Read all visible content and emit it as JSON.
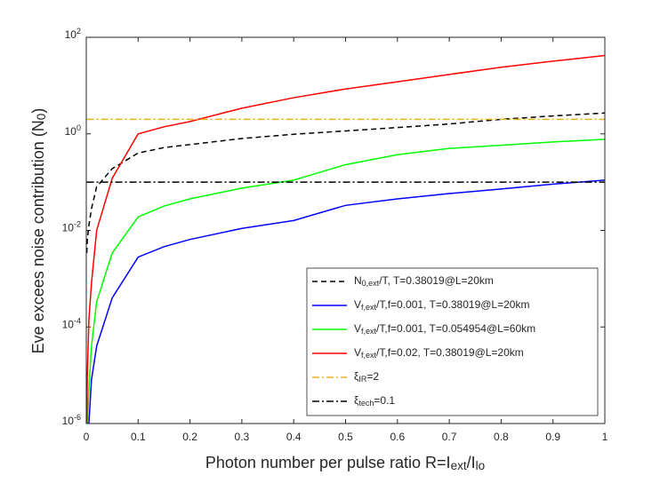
{
  "chart_data": {
    "type": "line",
    "xlabel": "Photon number per pulse ratio R=I_{ext}/I_{lo}",
    "ylabel": "Eve excees noise contribution  (N_0)",
    "x": [
      0.001,
      0.002,
      0.005,
      0.01,
      0.02,
      0.05,
      0.1,
      0.15,
      0.2,
      0.3,
      0.4,
      0.5,
      0.6,
      0.7,
      0.8,
      0.9,
      1
    ],
    "series": [
      {
        "name": "N_{0,ext}/T, T=0.38019@L=20km",
        "color": "#000000",
        "linestyle": "--",
        "values": [
          0.0034,
          0.0063,
          0.0126,
          0.028,
          0.08,
          0.19,
          0.4,
          0.52,
          0.6,
          0.8,
          0.98,
          1.15,
          1.35,
          1.6,
          2.0,
          2.35,
          2.7
        ]
      },
      {
        "name": "V_{f,ext}/T,f=0.001, T=0.38019@L=20km",
        "color": "#0000ff",
        "linestyle": "-",
        "values": [
          null,
          null,
          1e-06,
          8e-06,
          4e-05,
          0.0004,
          0.0028,
          0.0046,
          0.0065,
          0.011,
          0.016,
          0.033,
          0.045,
          0.058,
          0.072,
          0.091,
          0.11
        ]
      },
      {
        "name": "V_{f,ext}/T,f=0.001, T=0.054954@L=60km",
        "color": "#00ff00",
        "linestyle": "-",
        "values": [
          null,
          1e-06,
          5e-06,
          4e-05,
          0.00033,
          0.0034,
          0.019,
          0.032,
          0.045,
          0.075,
          0.11,
          0.23,
          0.37,
          0.5,
          0.58,
          0.68,
          0.77
        ]
      },
      {
        "name": "V_{f,ext}/T,f=0.02, T=0.38019@L=20km",
        "color": "#ff0000",
        "linestyle": "-",
        "values": [
          1e-06,
          1e-05,
          0.00014,
          0.0008,
          0.01,
          0.12,
          1,
          1.4,
          1.8,
          3.4,
          5.6,
          8.5,
          12,
          17,
          24,
          32,
          42
        ]
      },
      {
        "name": "ξ_{IR}=2",
        "color": "#edb120",
        "linestyle": "-.",
        "values": [
          2,
          2,
          2,
          2,
          2,
          2,
          2,
          2,
          2,
          2,
          2,
          2,
          2,
          2,
          2,
          2,
          2
        ]
      },
      {
        "name": "ξ_{tech}=0.1",
        "color": "#000000",
        "linestyle": "-.",
        "values": [
          0.1,
          0.1,
          0.1,
          0.1,
          0.1,
          0.1,
          0.1,
          0.1,
          0.1,
          0.1,
          0.1,
          0.1,
          0.1,
          0.1,
          0.1,
          0.1,
          0.1
        ]
      }
    ],
    "xlim": [
      0,
      1
    ],
    "xticks": [
      0,
      0.1,
      0.2,
      0.3,
      0.4,
      0.5,
      0.6,
      0.7,
      0.8,
      0.9,
      1
    ],
    "ylim": [
      1e-06,
      100
    ],
    "yscale": "log",
    "yticks": [
      {
        "value": 1e-06,
        "label": "10^{-6}"
      },
      {
        "value": 0.0001,
        "label": "10^{-4}"
      },
      {
        "value": 0.01,
        "label": "10^{-2}"
      },
      {
        "value": 1,
        "label": "10^{0}"
      },
      {
        "value": 100,
        "label": "10^{2}"
      }
    ],
    "legend": "lower right"
  }
}
